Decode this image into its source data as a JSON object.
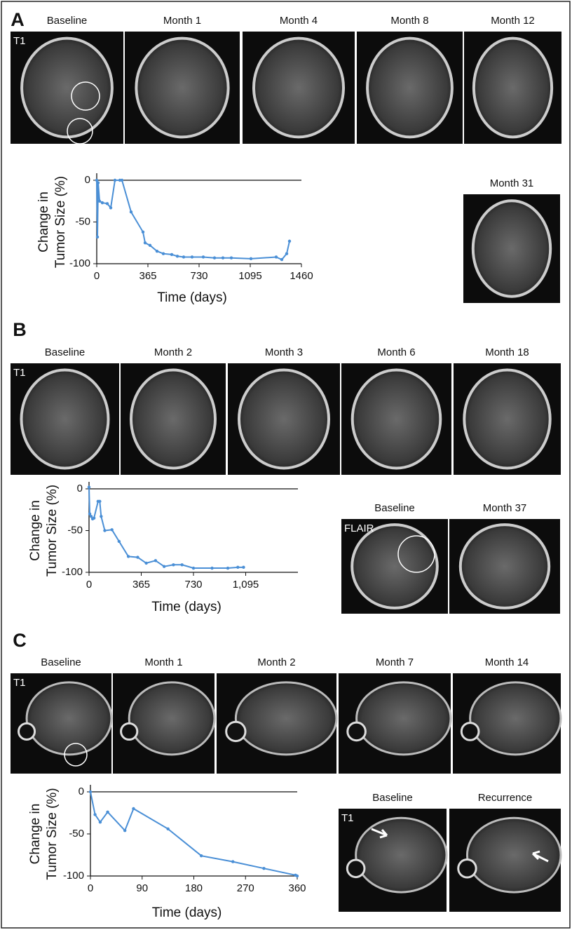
{
  "chart_data": [
    {
      "type": "line",
      "xlabel": "Time (days)",
      "ylabel": [
        "Change in",
        "Tumor Size (%)"
      ],
      "xlim": [
        0,
        1460
      ],
      "ylim": [
        -100,
        0
      ],
      "xticks": [
        0,
        365,
        730,
        1095,
        1460
      ],
      "yticks": [
        0,
        -50,
        -100
      ],
      "color": "#4a8fd6",
      "x": [
        0,
        5,
        10,
        20,
        40,
        75,
        100,
        130,
        165,
        180,
        245,
        330,
        345,
        380,
        430,
        475,
        535,
        575,
        620,
        680,
        760,
        840,
        900,
        960,
        1100,
        1280,
        1320,
        1355,
        1375
      ],
      "values": [
        0,
        -68,
        -3,
        -25,
        -27,
        -28,
        -33,
        0,
        0,
        0,
        -38,
        -62,
        -75,
        -78,
        -85,
        -88,
        -89,
        -91,
        -92,
        -92,
        -92,
        -93,
        -93,
        -93,
        -94,
        -92,
        -95,
        -88,
        -73
      ]
    },
    {
      "type": "line",
      "xlabel": "Time (days)",
      "ylabel": [
        "Change in",
        "Tumor Size (%)"
      ],
      "xlim": [
        0,
        1460
      ],
      "ylim": [
        -100,
        0
      ],
      "xticks": [
        0,
        365,
        730,
        {
          "value": 1095,
          "label": "1,095"
        }
      ],
      "yticks": [
        0,
        -50,
        -100
      ],
      "color": "#4a8fd6",
      "x": [
        0,
        5,
        15,
        25,
        35,
        63,
        75,
        85,
        110,
        160,
        210,
        275,
        340,
        400,
        465,
        525,
        590,
        650,
        730,
        860,
        970,
        1040,
        1080
      ],
      "values": [
        2,
        -30,
        -33,
        -36,
        -35,
        -15,
        -15,
        -33,
        -50,
        -49,
        -63,
        -81,
        -82,
        -89,
        -86,
        -93,
        -91,
        -91,
        -95,
        -95,
        -95,
        -94,
        -94
      ]
    },
    {
      "type": "line",
      "xlabel": "Time (days)",
      "ylabel": [
        "Change in",
        "Tumor Size (%)"
      ],
      "xlim": [
        0,
        360
      ],
      "ylim": [
        -100,
        0
      ],
      "xticks": [
        0,
        90,
        180,
        270,
        360
      ],
      "yticks": [
        0,
        -50,
        -100
      ],
      "color": "#4a8fd6",
      "x": [
        0,
        8,
        17,
        30,
        60,
        75,
        135,
        193,
        248,
        302,
        357,
        360
      ],
      "values": [
        0,
        -27,
        -36,
        -24,
        -46,
        -20,
        -44,
        -76,
        -83,
        -91,
        -99,
        -100
      ]
    }
  ],
  "panels": [
    {
      "letter": "A",
      "images": [
        {
          "label": "Baseline",
          "tag": "T1"
        },
        {
          "label": "Month 1"
        },
        {
          "label": "Month 4"
        },
        {
          "label": "Month 8"
        },
        {
          "label": "Month 12"
        },
        {
          "label": "Month 31"
        }
      ]
    },
    {
      "letter": "B",
      "images": [
        {
          "label": "Baseline",
          "tag": "T1"
        },
        {
          "label": "Month 2"
        },
        {
          "label": "Month 3"
        },
        {
          "label": "Month 6"
        },
        {
          "label": "Month 18"
        },
        {
          "label": "Baseline",
          "tag": "FLAIR"
        },
        {
          "label": "Month 37"
        }
      ]
    },
    {
      "letter": "C",
      "images": [
        {
          "label": "Baseline",
          "tag": "T1"
        },
        {
          "label": "Month 1"
        },
        {
          "label": "Month 2"
        },
        {
          "label": "Month 7"
        },
        {
          "label": "Month 14"
        },
        {
          "label": "Baseline",
          "tag": "T1"
        },
        {
          "label": "Recurrence"
        }
      ]
    }
  ]
}
